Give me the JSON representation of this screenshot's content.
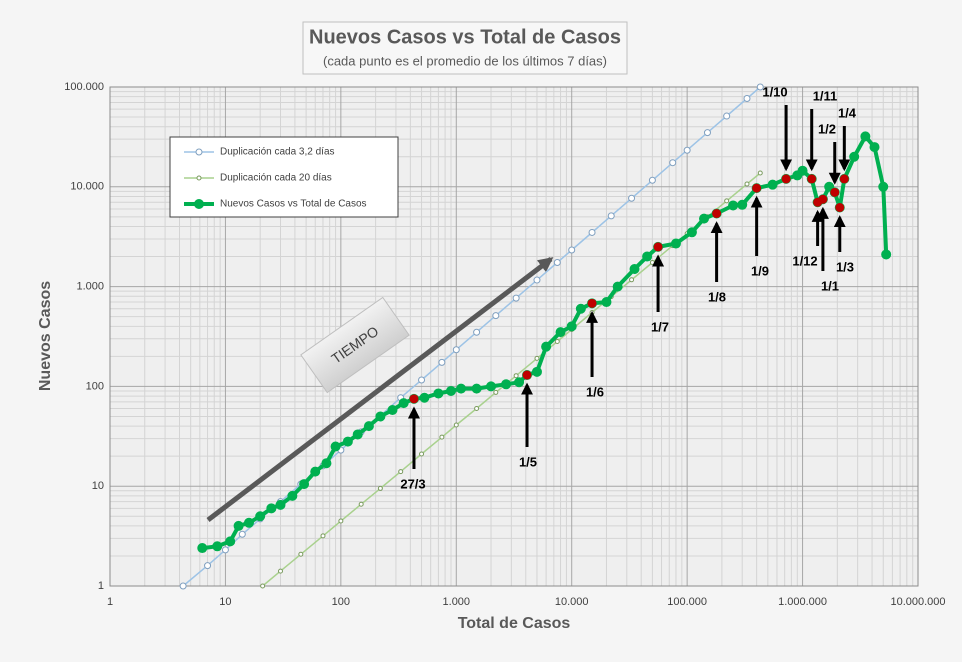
{
  "chart_data": {
    "type": "line",
    "title": "Nuevos Casos vs Total de Casos",
    "subtitle": "(cada punto es el promedio  de los últimos  7 días)",
    "x_label": "Total de Casos",
    "y_label": "Nuevos Casos",
    "log_x": true,
    "log_y": true,
    "grid": true,
    "legend": "upper left",
    "tiempo_label": "TIEMPO",
    "xlim": [
      1,
      10000000
    ],
    "ylim": [
      1,
      100000
    ],
    "xticks": [
      1,
      10,
      100,
      {
        "value": 1000,
        "label": "1.000"
      },
      {
        "value": 10000,
        "label": "10.000"
      },
      {
        "value": 100000,
        "label": "100.000"
      },
      {
        "value": 1000000,
        "label": "1.000.000"
      },
      {
        "value": 10000000,
        "label": "10.000.000"
      }
    ],
    "yticks": [
      1,
      10,
      100,
      {
        "value": 1000,
        "label": "1.000"
      },
      {
        "value": 10000,
        "label": "10.000"
      },
      {
        "value": 100000,
        "label": "100.000"
      }
    ],
    "series": [
      {
        "name": "Duplicación cada 3,2 días",
        "color": "#9dc3e6",
        "marker_color": "#7f9fbf",
        "x": [
          4.3,
          7,
          10,
          14,
          20,
          30,
          45,
          70,
          100,
          150,
          220,
          330,
          500,
          750,
          1000,
          1500,
          2200,
          3300,
          5000,
          7500,
          10000,
          15000,
          22000,
          33000,
          50000,
          75000,
          100000,
          150000,
          220000,
          330000,
          430000
        ],
        "values": [
          1,
          1.6,
          2.3,
          3.3,
          4.7,
          7,
          10.5,
          16,
          23,
          35,
          51,
          77,
          116,
          174,
          233,
          349,
          512,
          767,
          1163,
          1744,
          2326,
          3488,
          5116,
          7674,
          11628,
          17442,
          23256,
          34884,
          51163,
          76744,
          100000
        ]
      },
      {
        "name": "Duplicación cada 20 días",
        "color": "#a9d18e",
        "marker_color": "#7a9a5e",
        "x": [
          21,
          30,
          45,
          70,
          100,
          150,
          220,
          330,
          500,
          750,
          1000,
          1500,
          2200,
          3300,
          5000,
          7500,
          10000,
          15000,
          22000,
          33000,
          50000,
          75000,
          100000,
          150000,
          220000,
          330000,
          430000
        ],
        "values": [
          1,
          1.41,
          2.08,
          3.18,
          4.48,
          6.6,
          9.5,
          14,
          21,
          31,
          41,
          60,
          87,
          128,
          191,
          282,
          372,
          550,
          793,
          1170,
          1745,
          2576,
          3396,
          5012,
          7228,
          10670,
          13760
        ]
      },
      {
        "name": "Nuevos Casos vs Total de Casos",
        "color": "#00b050",
        "marker_color": "#00b050",
        "x": [
          6.3,
          8.5,
          11,
          13,
          16,
          20,
          25,
          30,
          38,
          48,
          60,
          75,
          90,
          115,
          140,
          175,
          220,
          280,
          350,
          430,
          530,
          700,
          900,
          1100,
          1500,
          2000,
          2700,
          3500,
          4100,
          5000,
          6000,
          8000,
          10000,
          12000,
          15000,
          20000,
          25000,
          35000,
          45000,
          56000,
          80000,
          110000,
          140000,
          180000,
          250000,
          300000,
          400000,
          550000,
          720000,
          900000,
          1000000,
          1200000,
          1350000,
          1500000,
          1700000,
          1900000,
          2100000,
          2300000,
          2800000,
          3500000,
          4200000,
          5000000,
          5300000
        ],
        "values": [
          2.4,
          2.5,
          2.8,
          4,
          4.3,
          5,
          6,
          6.5,
          8,
          10.5,
          14,
          17,
          25,
          28,
          33,
          40,
          50,
          58,
          68,
          75,
          77,
          85,
          90,
          95,
          95,
          100,
          105,
          110,
          130,
          140,
          250,
          350,
          400,
          600,
          680,
          700,
          1000,
          1500,
          2000,
          2500,
          2700,
          3500,
          4800,
          5400,
          6500,
          6600,
          9700,
          10500,
          12000,
          13000,
          14500,
          12000,
          7000,
          7500,
          10000,
          8800,
          6200,
          12000,
          20000,
          32000,
          25000,
          10000,
          2100
        ]
      }
    ],
    "highlight_color": "#c00000",
    "annotations": [
      {
        "text": "27/3",
        "x": 430,
        "y": 75
      },
      {
        "text": "1/5",
        "x": 4100,
        "y": 130
      },
      {
        "text": "1/6",
        "x": 15000,
        "y": 680
      },
      {
        "text": "1/7",
        "x": 56000,
        "y": 2500
      },
      {
        "text": "1/8",
        "x": 180000,
        "y": 5400
      },
      {
        "text": "1/9",
        "x": 400000,
        "y": 9700
      },
      {
        "text": "1/10",
        "x": 720000,
        "y": 12000
      },
      {
        "text": "1/11",
        "x": 1200000,
        "y": 12000
      },
      {
        "text": "1/12",
        "x": 1350000,
        "y": 7000
      },
      {
        "text": "1/1",
        "x": 1500000,
        "y": 7500
      },
      {
        "text": "1/2",
        "x": 1900000,
        "y": 8800
      },
      {
        "text": "1/3",
        "x": 2100000,
        "y": 6200
      },
      {
        "text": "1/4",
        "x": 2300000,
        "y": 12000
      }
    ]
  }
}
